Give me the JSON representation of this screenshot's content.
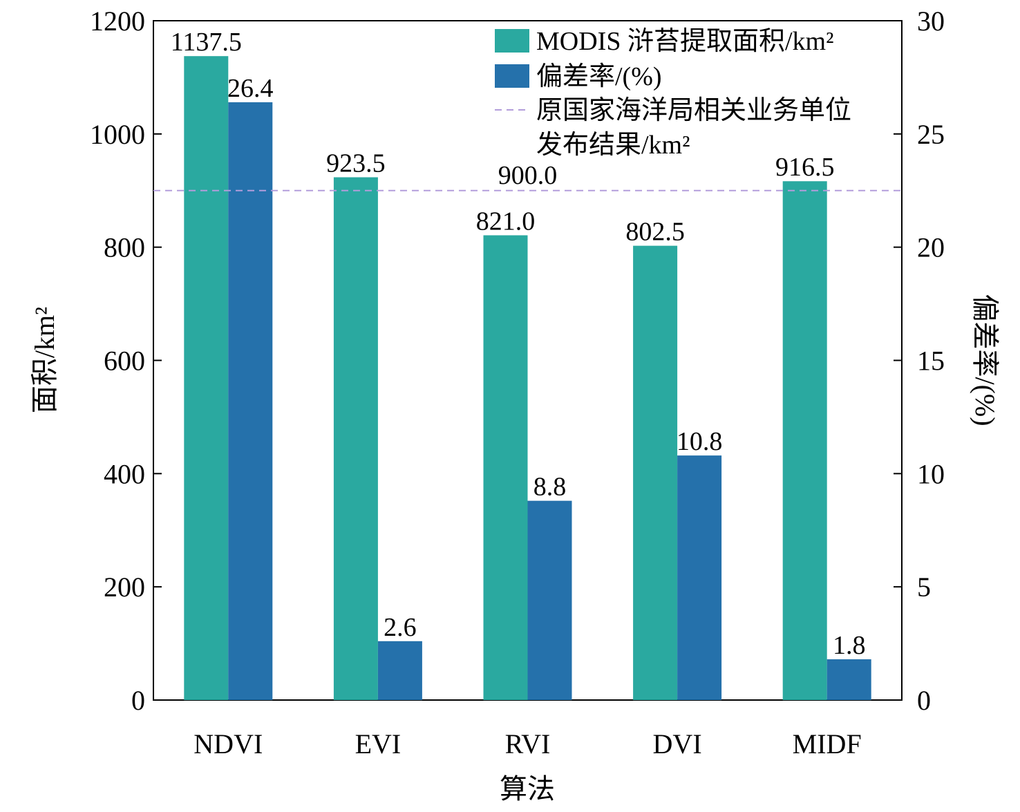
{
  "chart_data": {
    "type": "bar",
    "xlabel": "算法",
    "ylabel": "面积/km²",
    "y2label": "偏差率/(%)",
    "categories": [
      "NDVI",
      "EVI",
      "RVI",
      "DVI",
      "MIDF"
    ],
    "ylim": [
      0,
      1200
    ],
    "y2lim": [
      0,
      30
    ],
    "yticks": [
      "0",
      "200",
      "400",
      "600",
      "800",
      "1000",
      "1200"
    ],
    "y2ticks": [
      "0",
      "5",
      "10",
      "15",
      "20",
      "25",
      "30"
    ],
    "series": [
      {
        "name": "MODIS 浒苔提取面积/km²",
        "axis": "left",
        "color": "#2aa9a0",
        "values": [
          1137.5,
          923.5,
          821.0,
          802.5,
          916.5
        ],
        "labels": [
          "1137.5",
          "923.5",
          "821.0",
          "802.5",
          "916.5"
        ]
      },
      {
        "name": "偏差率/(%)",
        "axis": "right",
        "color": "#2571ab",
        "values": [
          26.4,
          2.6,
          8.8,
          10.8,
          1.8
        ],
        "labels": [
          "26.4",
          "2.6",
          "8.8",
          "10.8",
          "1.8"
        ]
      }
    ],
    "reference_line": {
      "name_lines": [
        "原国家海洋局相关业务单位",
        "发布结果/km²"
      ],
      "value": 900.0,
      "label": "900.0",
      "color": "#b39ddb",
      "style": "dashed"
    },
    "legend_position": "top-right",
    "grid": false
  }
}
